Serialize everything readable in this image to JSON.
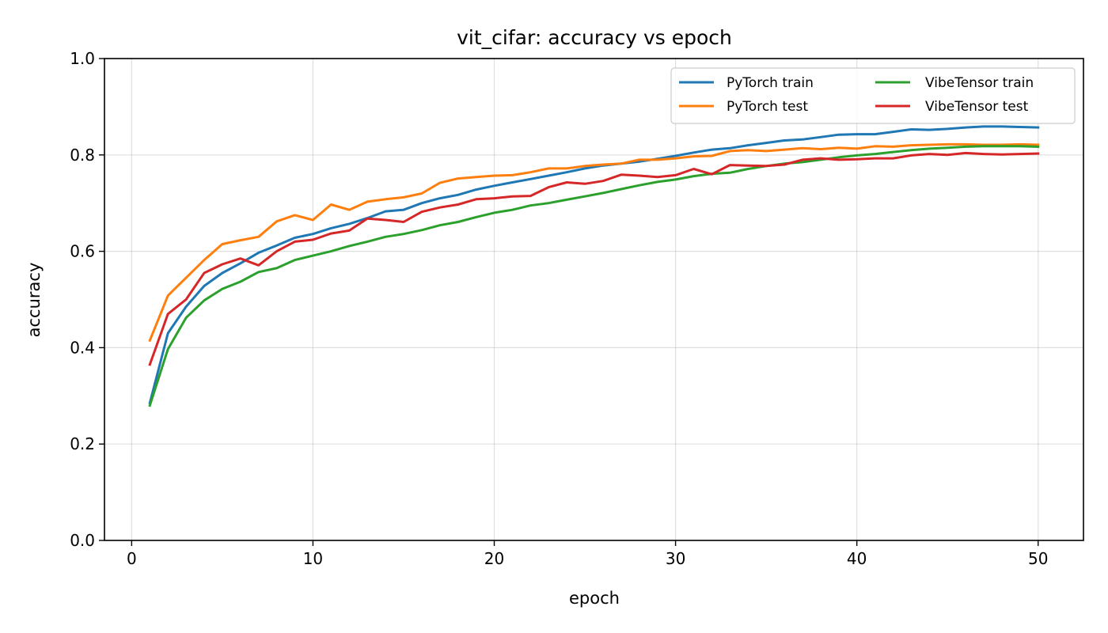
{
  "chart_data": {
    "type": "line",
    "title": "vit_cifar: accuracy vs epoch",
    "xlabel": "epoch",
    "ylabel": "accuracy",
    "xlim": [
      -1.5,
      52.5
    ],
    "ylim": [
      0.0,
      1.0
    ],
    "xticks": [
      0,
      10,
      20,
      30,
      40,
      50
    ],
    "yticks": [
      0.0,
      0.2,
      0.4,
      0.6,
      0.8,
      1.0
    ],
    "xtick_labels": [
      "0",
      "10",
      "20",
      "30",
      "40",
      "50"
    ],
    "ytick_labels": [
      "0.0",
      "0.2",
      "0.4",
      "0.6",
      "0.8",
      "1.0"
    ],
    "grid": true,
    "legend": {
      "location": "upper right",
      "columns": 2
    },
    "x": [
      1,
      2,
      3,
      4,
      5,
      6,
      7,
      8,
      9,
      10,
      11,
      12,
      13,
      14,
      15,
      16,
      17,
      18,
      19,
      20,
      21,
      22,
      23,
      24,
      25,
      26,
      27,
      28,
      29,
      30,
      31,
      32,
      33,
      34,
      35,
      36,
      37,
      38,
      39,
      40,
      41,
      42,
      43,
      44,
      45,
      46,
      47,
      48,
      49,
      50
    ],
    "series": [
      {
        "name": "PyTorch train",
        "color": "#1f77b4",
        "values": [
          0.285,
          0.43,
          0.485,
          0.528,
          0.555,
          0.575,
          0.597,
          0.612,
          0.628,
          0.636,
          0.648,
          0.657,
          0.669,
          0.683,
          0.686,
          0.7,
          0.71,
          0.717,
          0.728,
          0.736,
          0.743,
          0.75,
          0.757,
          0.764,
          0.772,
          0.778,
          0.782,
          0.786,
          0.792,
          0.798,
          0.805,
          0.811,
          0.814,
          0.82,
          0.825,
          0.83,
          0.832,
          0.837,
          0.842,
          0.843,
          0.843,
          0.848,
          0.853,
          0.852,
          0.854,
          0.857,
          0.859,
          0.859,
          0.858,
          0.857
        ]
      },
      {
        "name": "PyTorch test",
        "color": "#ff7f0e",
        "values": [
          0.415,
          0.508,
          0.545,
          0.582,
          0.615,
          0.623,
          0.63,
          0.662,
          0.675,
          0.665,
          0.697,
          0.686,
          0.703,
          0.708,
          0.712,
          0.72,
          0.742,
          0.751,
          0.754,
          0.757,
          0.758,
          0.764,
          0.772,
          0.772,
          0.777,
          0.78,
          0.782,
          0.79,
          0.79,
          0.793,
          0.797,
          0.798,
          0.808,
          0.81,
          0.808,
          0.811,
          0.814,
          0.812,
          0.815,
          0.813,
          0.818,
          0.817,
          0.82,
          0.821,
          0.822,
          0.822,
          0.821,
          0.821,
          0.822,
          0.821
        ]
      },
      {
        "name": "VibeTensor train",
        "color": "#2ca02c",
        "values": [
          0.28,
          0.397,
          0.462,
          0.498,
          0.522,
          0.537,
          0.557,
          0.565,
          0.582,
          0.591,
          0.6,
          0.611,
          0.62,
          0.63,
          0.636,
          0.644,
          0.654,
          0.661,
          0.671,
          0.68,
          0.686,
          0.695,
          0.7,
          0.707,
          0.714,
          0.721,
          0.729,
          0.737,
          0.744,
          0.749,
          0.756,
          0.761,
          0.763,
          0.771,
          0.777,
          0.782,
          0.785,
          0.79,
          0.795,
          0.799,
          0.802,
          0.806,
          0.81,
          0.813,
          0.815,
          0.817,
          0.818,
          0.818,
          0.818,
          0.817
        ]
      },
      {
        "name": "VibeTensor test",
        "color": "#d62728",
        "values": [
          0.365,
          0.47,
          0.5,
          0.555,
          0.573,
          0.585,
          0.571,
          0.6,
          0.62,
          0.624,
          0.637,
          0.643,
          0.668,
          0.665,
          0.661,
          0.682,
          0.691,
          0.697,
          0.708,
          0.71,
          0.714,
          0.715,
          0.733,
          0.743,
          0.74,
          0.746,
          0.759,
          0.757,
          0.754,
          0.758,
          0.771,
          0.76,
          0.779,
          0.778,
          0.777,
          0.78,
          0.79,
          0.793,
          0.79,
          0.791,
          0.793,
          0.793,
          0.799,
          0.802,
          0.8,
          0.804,
          0.802,
          0.801,
          0.802,
          0.803
        ]
      }
    ]
  }
}
